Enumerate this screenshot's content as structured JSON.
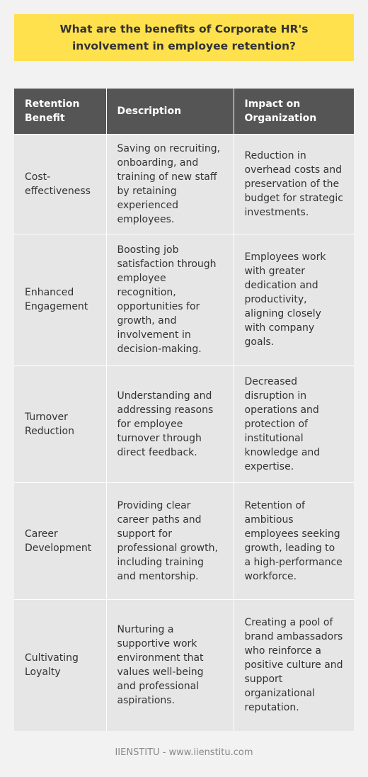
{
  "title": "What are the benefits of Corporate HR's involvement in employee retention?",
  "table": {
    "headers": [
      "Retention Benefit",
      "Description",
      "Impact on Organization"
    ],
    "rows": [
      {
        "benefit": "Cost-effectiveness",
        "description": "Saving on recruiting, onboarding, and training of new staff by retaining experienced employees.",
        "impact": "Reduction in overhead costs and preservation of the budget for strategic investments."
      },
      {
        "benefit": "Enhanced Engagement",
        "description": "Boosting job satisfaction through employee recognition, opportunities for growth, and involvement in decision-making.",
        "impact": "Employees work with greater dedication and productivity, aligning closely with company goals."
      },
      {
        "benefit": "Turnover Reduction",
        "description": "Understanding and addressing reasons for employee turnover through direct feedback.",
        "impact": "Decreased disruption in operations and protection of institutional knowledge and expertise."
      },
      {
        "benefit": "Career Development",
        "description": "Providing clear career paths and support for professional growth, including training and mentorship.",
        "impact": "Retention of ambitious employees seeking growth, leading to a high-performance workforce."
      },
      {
        "benefit": "Cultivating Loyalty",
        "description": "Nurturing a supportive work environment that values well-being and professional aspirations.",
        "impact": "Creating a pool of brand ambassadors who reinforce a positive culture and support organizational reputation."
      }
    ]
  },
  "footer": "IIENSTITU - www.iienstitu.com",
  "colors": {
    "title_background": "#ffe14d",
    "header_background": "#555555",
    "cell_background": "#e6e6e6",
    "page_background": "#f2f2f2"
  }
}
